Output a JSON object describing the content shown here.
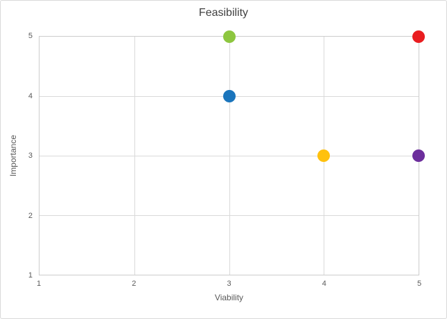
{
  "chart_data": {
    "type": "scatter",
    "title": "Feasibility",
    "xlabel": "Viability",
    "ylabel": "Importance",
    "xlim": [
      1,
      5
    ],
    "ylim": [
      1,
      5
    ],
    "x_ticks": [
      1,
      2,
      3,
      4,
      5
    ],
    "y_ticks": [
      1,
      2,
      3,
      4,
      5
    ],
    "grid": true,
    "legend": "none",
    "marker_diameter_px": 18,
    "colors": {
      "gridline": "#d9d9d9",
      "axis_text": "#595959",
      "title_text": "#404040",
      "chart_border": "#d9d9d9"
    },
    "points": [
      {
        "name": "green",
        "x": 3,
        "y": 5,
        "color": "#8dc63f"
      },
      {
        "name": "red",
        "x": 5,
        "y": 5,
        "color": "#e91d20"
      },
      {
        "name": "blue",
        "x": 3,
        "y": 4,
        "color": "#1b75bc"
      },
      {
        "name": "yellow",
        "x": 4,
        "y": 3,
        "color": "#ffc10e"
      },
      {
        "name": "purple",
        "x": 5,
        "y": 3,
        "color": "#6c2e9c"
      }
    ]
  }
}
